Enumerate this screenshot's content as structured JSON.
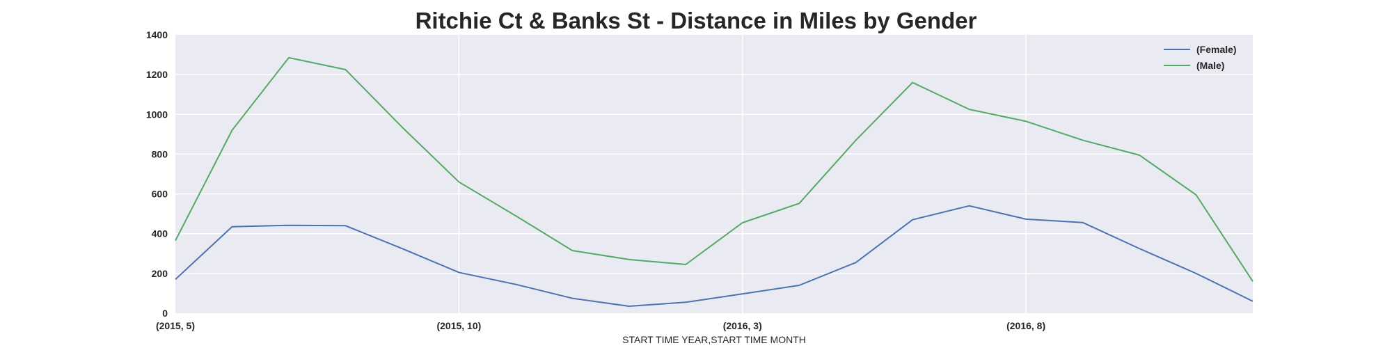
{
  "chart_data": {
    "type": "line",
    "title": "Ritchie Ct & Banks St - Distance in Miles by Gender",
    "xlabel": "START TIME YEAR,START TIME MONTH",
    "ylabel": "",
    "x_categories": [
      "(2015, 5)",
      "(2015, 6)",
      "(2015, 7)",
      "(2015, 8)",
      "(2015, 9)",
      "(2015, 10)",
      "(2015, 11)",
      "(2015, 12)",
      "(2016, 1)",
      "(2016, 2)",
      "(2016, 3)",
      "(2016, 4)",
      "(2016, 5)",
      "(2016, 6)",
      "(2016, 7)",
      "(2016, 8)",
      "(2016, 9)",
      "(2016, 10)",
      "(2016, 11)",
      "(2016, 12)"
    ],
    "x_tick_indices": [
      0,
      5,
      10,
      15
    ],
    "x_tick_labels": [
      "(2015, 5)",
      "(2015, 10)",
      "(2016, 3)",
      "(2016, 8)"
    ],
    "ylim": [
      0,
      1400
    ],
    "y_ticks": [
      0,
      200,
      400,
      600,
      800,
      1000,
      1200,
      1400
    ],
    "grid": true,
    "legend_position": "top-right",
    "series": [
      {
        "name": "(Female)",
        "color": "#4c72b0",
        "values": [
          170,
          435,
          442,
          440,
          325,
          205,
          145,
          75,
          35,
          55,
          97,
          140,
          255,
          470,
          540,
          473,
          456,
          325,
          200,
          60
        ]
      },
      {
        "name": "(Male)",
        "color": "#55a868",
        "values": [
          365,
          920,
          1285,
          1225,
          935,
          660,
          490,
          315,
          270,
          245,
          455,
          552,
          870,
          1160,
          1025,
          965,
          870,
          795,
          595,
          160
        ]
      }
    ]
  },
  "colors": {
    "plot_background": "#eaeaf2",
    "grid": "#ffffff",
    "text": "#262626"
  }
}
